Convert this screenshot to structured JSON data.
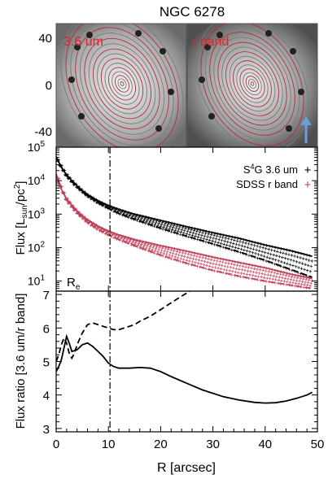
{
  "title": "NGC 6278",
  "images": {
    "left_label": "3.6 um",
    "right_label": "r band",
    "label_color": "#e8202a",
    "contour_color": "#b03040",
    "arrow_color": "#6a9fd8",
    "y_ticks": [
      "40",
      "0",
      "-40"
    ]
  },
  "chart_data": [
    {
      "type": "line",
      "ylabel": "Flux [L_sun/pc^2]",
      "ylabel_parts": [
        "Flux [L",
        "sun",
        "/pc",
        "2",
        "]"
      ],
      "xlim": [
        0,
        50
      ],
      "ylim": [
        5,
        100000
      ],
      "yscale": "log",
      "y_ticks": [
        {
          "value": 10,
          "base": "10",
          "exp": "1"
        },
        {
          "value": 100,
          "base": "10",
          "exp": "2"
        },
        {
          "value": 1000,
          "base": "10",
          "exp": "3"
        },
        {
          "value": 10000,
          "base": "10",
          "exp": "4"
        },
        {
          "value": 100000,
          "base": "10",
          "exp": "5"
        }
      ],
      "legend": {
        "placement": "top-right",
        "entries": [
          {
            "parts": [
              "S",
              "4",
              "G 3.6 um"
            ],
            "marker": "+",
            "color": "#000000"
          },
          {
            "parts": [
              "SDSS r band"
            ],
            "marker": "+",
            "color": "#c0405a"
          }
        ]
      },
      "vline": {
        "x": 10.3,
        "label": "R",
        "label_sub": "e"
      },
      "series": [
        {
          "color": "#000000",
          "style": "solid",
          "x": [
            0,
            1,
            2,
            3,
            4,
            5,
            6,
            8,
            10,
            12,
            15,
            20,
            25,
            30,
            35,
            40,
            45,
            49
          ],
          "y": [
            52000,
            25000,
            15000,
            10000,
            7000,
            5000,
            3800,
            2500,
            1800,
            1400,
            1000,
            650,
            420,
            280,
            190,
            120,
            80,
            55
          ]
        },
        {
          "color": "#000000",
          "style": "dashed",
          "x": [
            0,
            2,
            4,
            6,
            8,
            10,
            12,
            15,
            20,
            25,
            30,
            35,
            40,
            45,
            49
          ],
          "y": [
            48000,
            14000,
            6500,
            3500,
            2200,
            1500,
            1050,
            700,
            380,
            220,
            130,
            75,
            42,
            22,
            13
          ]
        },
        {
          "color": "#c0405a",
          "style": "solid",
          "x": [
            0,
            1,
            2,
            3,
            4,
            5,
            6,
            8,
            10,
            12,
            15,
            20,
            25,
            30,
            35,
            40,
            45,
            49
          ],
          "y": [
            16000,
            5500,
            2900,
            1850,
            1250,
            900,
            680,
            440,
            310,
            240,
            175,
            115,
            78,
            52,
            36,
            25,
            16,
            12
          ]
        },
        {
          "color": "#c0405a",
          "style": "dashed",
          "x": [
            0,
            2,
            4,
            6,
            8,
            10,
            12,
            15,
            20,
            25,
            30,
            35,
            40,
            45,
            49
          ],
          "y": [
            15000,
            2600,
            1100,
            570,
            350,
            240,
            175,
            115,
            60,
            34,
            21,
            14,
            10,
            7.5,
            6
          ]
        }
      ]
    },
    {
      "type": "line",
      "ylabel": "Flux ratio [3.6 um/r band]",
      "xlabel": "R [arcsec]",
      "xlim": [
        0,
        50
      ],
      "ylim": [
        2.9,
        7.1
      ],
      "x_ticks": [
        0,
        10,
        20,
        30,
        40,
        50
      ],
      "y_ticks": [
        3,
        4,
        5,
        6,
        7
      ],
      "vline": {
        "x": 10.3
      },
      "series": [
        {
          "color": "#000000",
          "style": "solid",
          "x": [
            0,
            0.5,
            1,
            1.5,
            2,
            2.5,
            3,
            4,
            5,
            6,
            7,
            8,
            9,
            10,
            11,
            12,
            14,
            16,
            18,
            20,
            22,
            25,
            28,
            30,
            32,
            35,
            38,
            40,
            42,
            44,
            46,
            48,
            49
          ],
          "y": [
            4.7,
            4.85,
            5.05,
            5.4,
            5.75,
            5.55,
            5.3,
            5.35,
            5.5,
            5.55,
            5.45,
            5.3,
            5.15,
            4.95,
            4.85,
            4.8,
            4.8,
            4.82,
            4.8,
            4.7,
            4.55,
            4.35,
            4.15,
            4.05,
            3.95,
            3.85,
            3.78,
            3.76,
            3.77,
            3.82,
            3.9,
            4.0,
            4.08
          ]
        },
        {
          "color": "#000000",
          "style": "dashed",
          "x": [
            0,
            0.5,
            1,
            1.5,
            2,
            2.5,
            3,
            3.5,
            4,
            5,
            6,
            7,
            8,
            9,
            10,
            11,
            12,
            13,
            14,
            15,
            16,
            18,
            20,
            22,
            24,
            25.6
          ],
          "y": [
            5.0,
            5.2,
            5.5,
            5.7,
            5.55,
            5.25,
            5.1,
            5.25,
            5.5,
            5.85,
            6.1,
            6.15,
            6.1,
            6.05,
            6.0,
            5.95,
            5.95,
            6.0,
            6.05,
            6.1,
            6.2,
            6.35,
            6.55,
            6.75,
            6.95,
            7.1
          ]
        }
      ]
    }
  ]
}
